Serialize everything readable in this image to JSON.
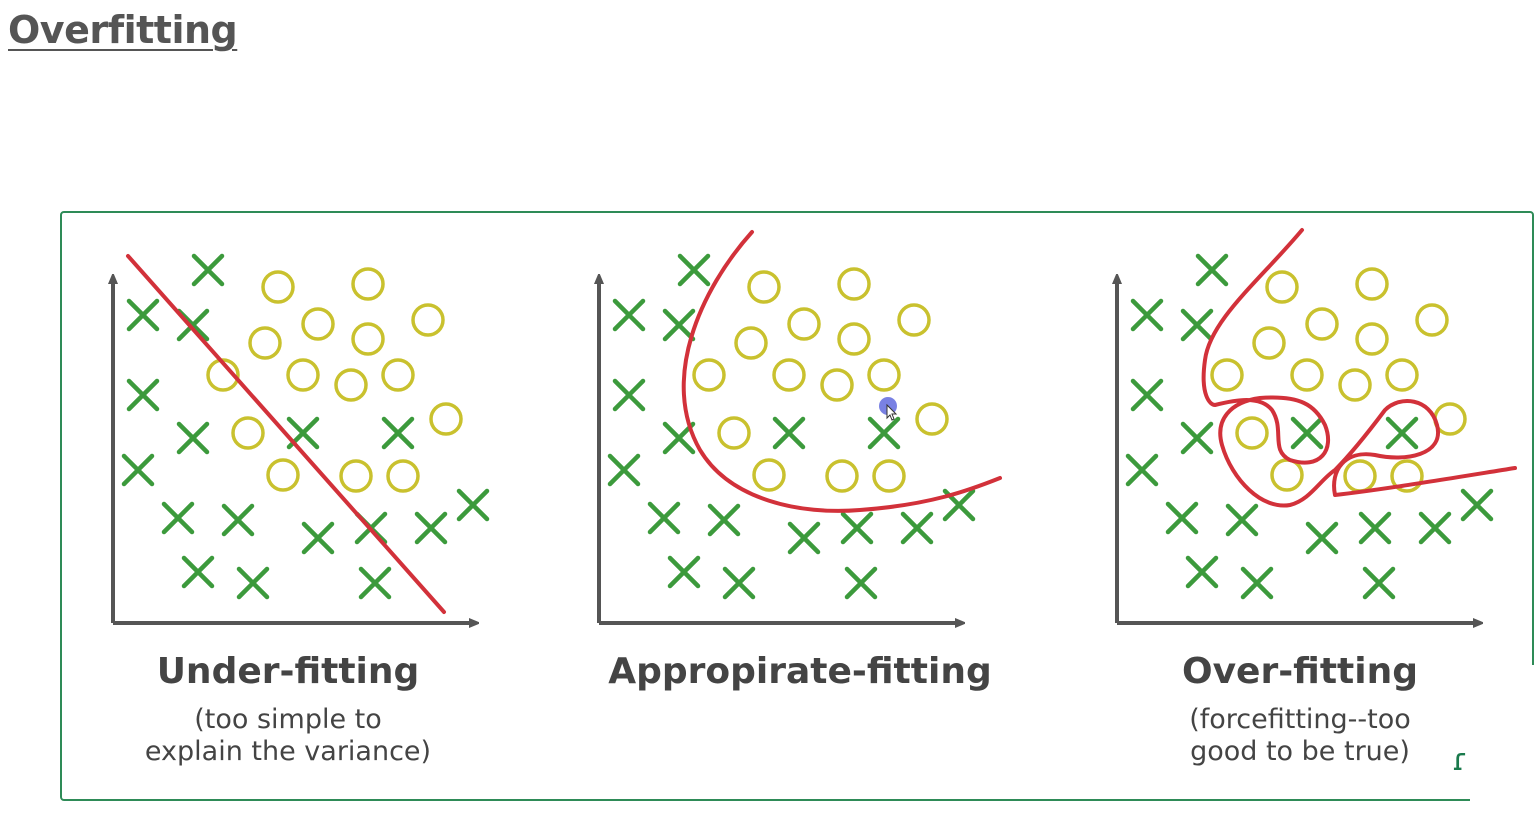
{
  "slide": {
    "title": "Overfitting"
  },
  "colors": {
    "cross": "#3c9a3c",
    "circle": "#c9c12e",
    "fit_line": "#d2313a",
    "axis": "#555555",
    "frame": "#2e8b57",
    "cursor_dot": "#6a73e0"
  },
  "panels": [
    {
      "title": "Under-fitting",
      "subtitle": "(too simple to\nexplain the variance)"
    },
    {
      "title": "Appropirate-fitting",
      "subtitle": ""
    },
    {
      "title": "Over-fitting",
      "subtitle": "(forcefitting--too\ngood to be true)"
    }
  ],
  "icons": {
    "cursor": "mouse-pointer-icon",
    "logo": "brand-logo-icon"
  }
}
